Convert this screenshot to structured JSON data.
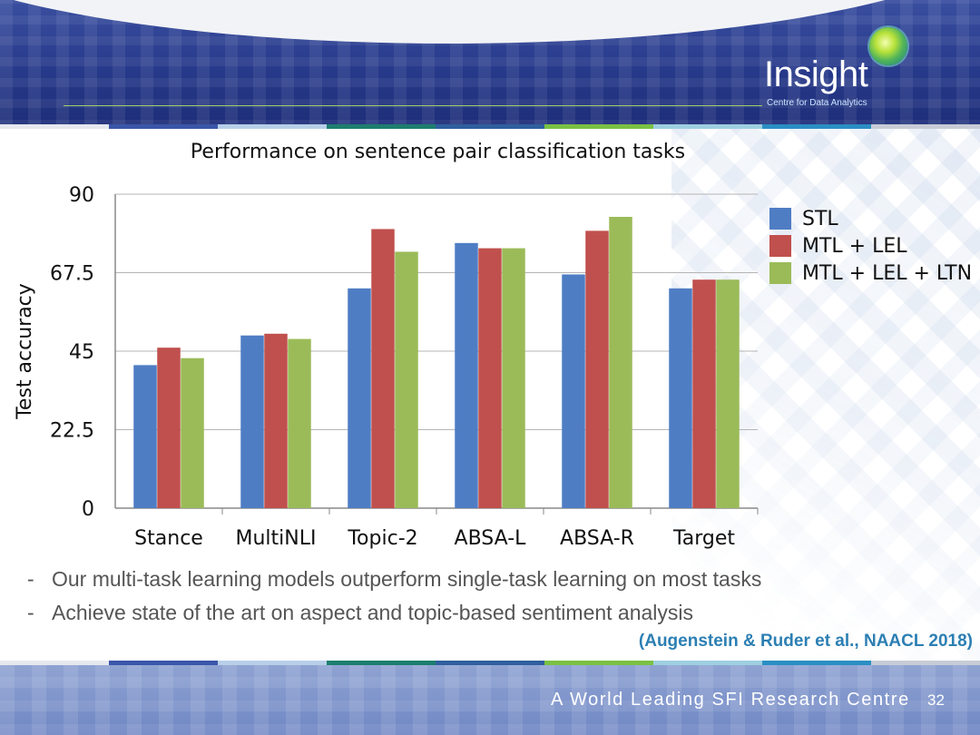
{
  "header": {
    "logo_text": "Insight",
    "logo_subtitle": "Centre for Data Analytics",
    "stripe_colors": [
      "#e6e8ee",
      "#3a56a8",
      "#b8cfe8",
      "#1d7f6e",
      "#2f5f9e",
      "#7bc143",
      "#9ecfe0",
      "#2a8fc4",
      "#c7ccd6"
    ]
  },
  "chart_data": {
    "type": "bar",
    "title": "Performance on sentence pair classification tasks",
    "ylabel": "Test accuracy",
    "xlabel": "",
    "ylim": [
      0,
      90
    ],
    "yticks": [
      "0",
      "22.5",
      "45",
      "67.5",
      "90"
    ],
    "grid": true,
    "legend_position": "right",
    "categories": [
      "Stance",
      "MultiNLI",
      "Topic-2",
      "ABSA-L",
      "ABSA-R",
      "Target"
    ],
    "series": [
      {
        "name": "STL",
        "color": "#4f7dc4",
        "values": [
          41,
          49.5,
          63,
          76,
          67,
          63
        ]
      },
      {
        "name": "MTL + LEL",
        "color": "#c0504d",
        "values": [
          46,
          50,
          80,
          74.5,
          79.5,
          65.5
        ]
      },
      {
        "name": "MTL + LEL + LTN",
        "color": "#9bbb59",
        "values": [
          43,
          48.5,
          73.5,
          74.5,
          83.5,
          65.5
        ]
      }
    ]
  },
  "bullets": [
    {
      "marker": "-",
      "text": "Our multi-task learning models outperform single-task learning on most tasks"
    },
    {
      "marker": "-",
      "text": "Achieve state of the art on aspect and topic-based sentiment analysis"
    }
  ],
  "citation": "(Augenstein & Ruder et al., NAACL 2018)",
  "footer": {
    "tagline": "A World Leading SFI Research Centre",
    "page_number": "32"
  }
}
